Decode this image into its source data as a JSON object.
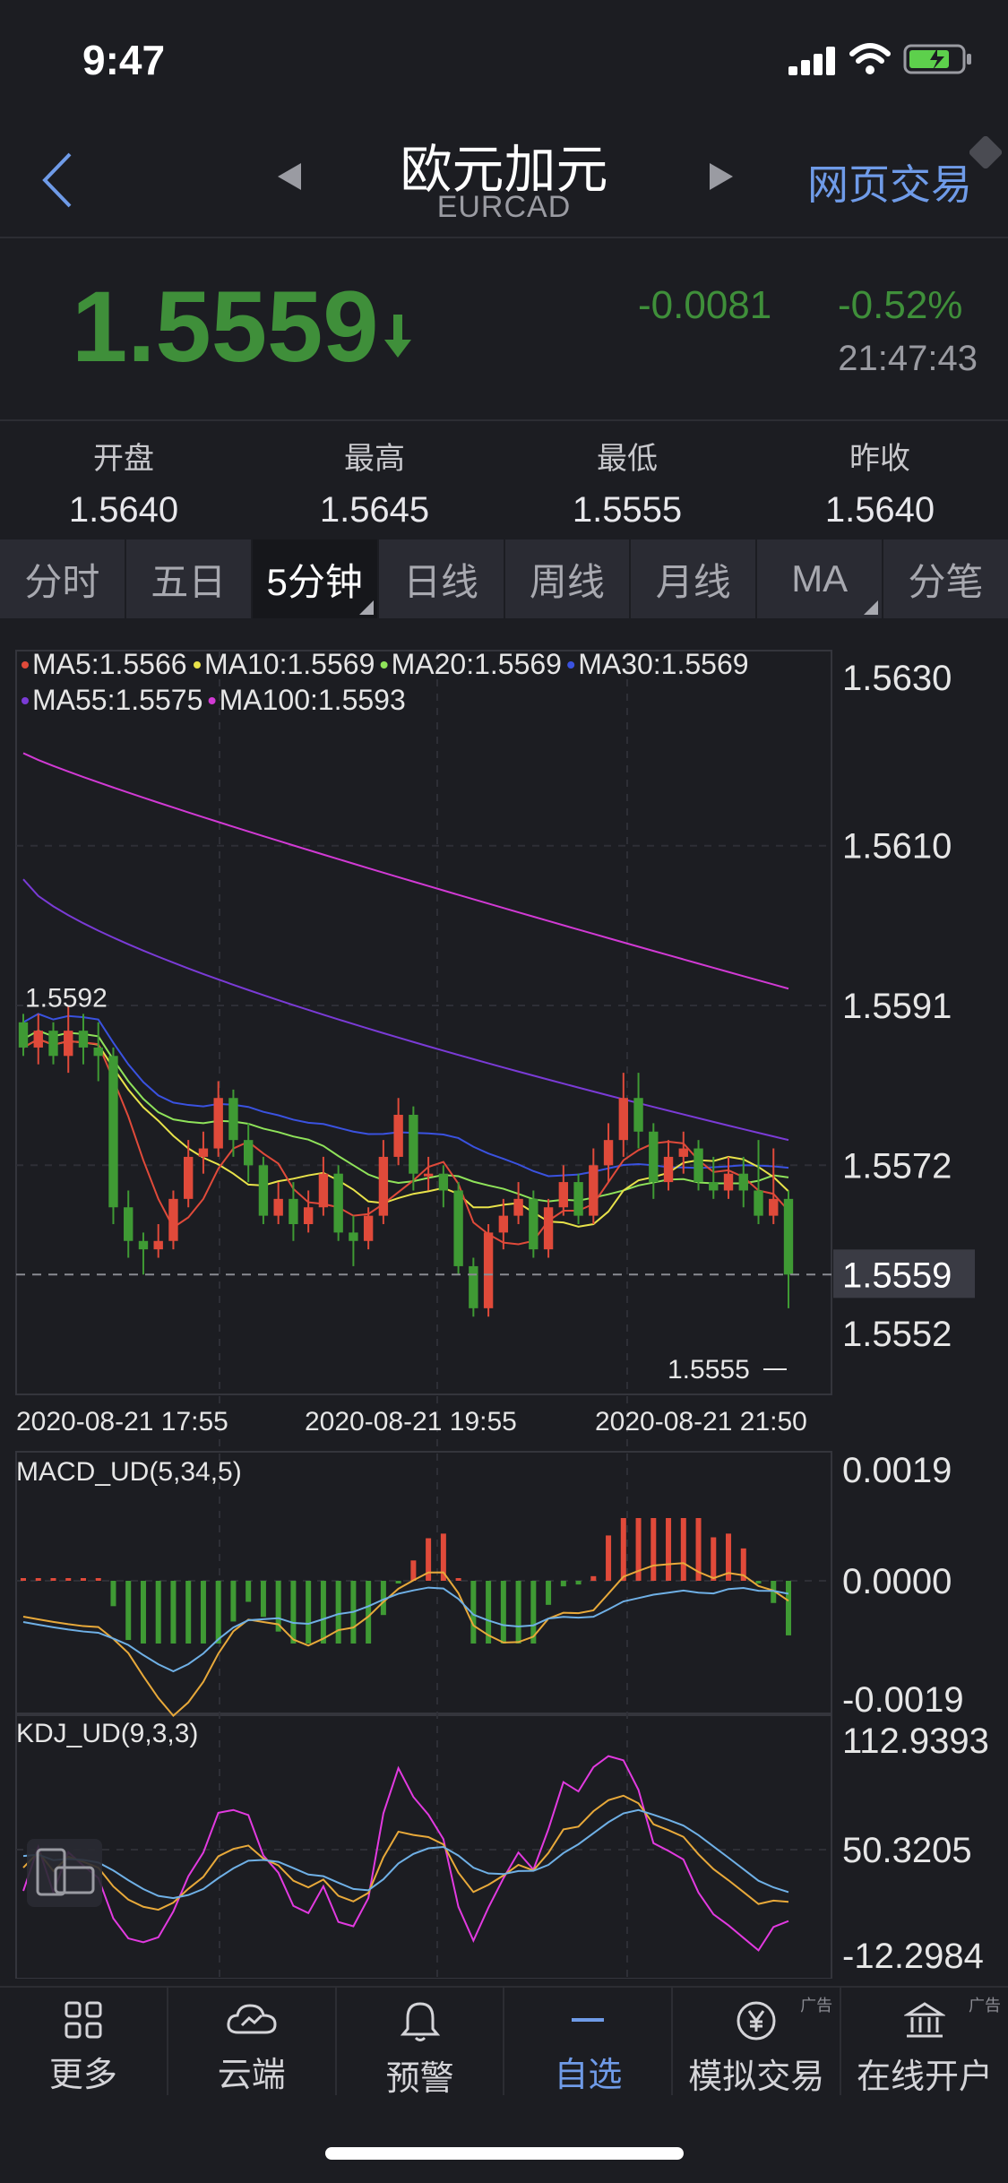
{
  "status_bar": {
    "time": "9:47"
  },
  "header": {
    "title": "欧元加元",
    "subtitle": "EURCAD",
    "web_trade": "网页交易"
  },
  "quote": {
    "price": "1.5559",
    "direction_icon": "down-arrow-icon",
    "change": "-0.0081",
    "change_pct": "-0.52%",
    "time": "21:47:43",
    "stats": [
      {
        "label": "开盘",
        "value": "1.5640"
      },
      {
        "label": "最高",
        "value": "1.5645"
      },
      {
        "label": "最低",
        "value": "1.5555"
      },
      {
        "label": "昨收",
        "value": "1.5640"
      }
    ]
  },
  "tabs": [
    "分时",
    "五日",
    "5分钟",
    "日线",
    "周线",
    "月线",
    "MA",
    "分笔"
  ],
  "active_tab": "5分钟",
  "colors": {
    "up": "#e04a3a",
    "down": "#3f9a34",
    "accent": "#6f9be8"
  },
  "chart_data": [
    {
      "type": "candlestick",
      "legend": [
        {
          "text": "MA5:1.5566",
          "color": "#e04a3a"
        },
        {
          "text": "MA10:1.5569",
          "color": "#e8e24a"
        },
        {
          "text": "MA20:1.5569",
          "color": "#8fe35a"
        },
        {
          "text": "MA30:1.5569",
          "color": "#3a52e0"
        },
        {
          "text": "MA55:1.5575",
          "color": "#7a3bd6"
        },
        {
          "text": "MA100:1.5593",
          "color": "#d13ad4"
        }
      ],
      "y_ticks": [
        "1.5630",
        "1.5610",
        "1.5591",
        "1.5572",
        "1.5552"
      ],
      "ylim": [
        1.5552,
        1.563
      ],
      "x_ticks": [
        "2020-08-21 17:55",
        "2020-08-21 19:55",
        "2020-08-21 21:50"
      ],
      "current_price": "1.5559",
      "high_marker": "1.5592",
      "low_marker": "1.5555",
      "candles": [
        [
          1.5589,
          1.5586,
          1.559,
          1.5585
        ],
        [
          1.5586,
          1.5588,
          1.559,
          1.5584
        ],
        [
          1.5588,
          1.5585,
          1.5589,
          1.5584
        ],
        [
          1.5585,
          1.5588,
          1.5591,
          1.5583
        ],
        [
          1.5588,
          1.5586,
          1.559,
          1.5584
        ],
        [
          1.5586,
          1.5585,
          1.5589,
          1.5582
        ],
        [
          1.5585,
          1.5567,
          1.5586,
          1.5565
        ],
        [
          1.5567,
          1.5563,
          1.5569,
          1.5561
        ],
        [
          1.5563,
          1.5562,
          1.5564,
          1.5559
        ],
        [
          1.5562,
          1.5563,
          1.5565,
          1.5561
        ],
        [
          1.5563,
          1.5568,
          1.5569,
          1.5562
        ],
        [
          1.5568,
          1.5573,
          1.5575,
          1.5567
        ],
        [
          1.5573,
          1.5574,
          1.5576,
          1.5571
        ],
        [
          1.5574,
          1.558,
          1.5582,
          1.5573
        ],
        [
          1.558,
          1.5575,
          1.5581,
          1.5573
        ],
        [
          1.5575,
          1.5572,
          1.5577,
          1.557
        ],
        [
          1.5572,
          1.5566,
          1.5573,
          1.5565
        ],
        [
          1.5566,
          1.5568,
          1.557,
          1.5565
        ],
        [
          1.5568,
          1.5565,
          1.557,
          1.5563
        ],
        [
          1.5565,
          1.5567,
          1.5569,
          1.5564
        ],
        [
          1.5567,
          1.5571,
          1.5573,
          1.5566
        ],
        [
          1.5571,
          1.5564,
          1.5572,
          1.5563
        ],
        [
          1.5564,
          1.5563,
          1.5566,
          1.556
        ],
        [
          1.5563,
          1.5566,
          1.5567,
          1.5562
        ],
        [
          1.5566,
          1.5573,
          1.5575,
          1.5565
        ],
        [
          1.5573,
          1.5578,
          1.558,
          1.5572
        ],
        [
          1.5578,
          1.5571,
          1.5579,
          1.5569
        ],
        [
          1.5571,
          1.5571,
          1.5573,
          1.5569
        ],
        [
          1.5571,
          1.5569,
          1.5572,
          1.5567
        ],
        [
          1.5569,
          1.556,
          1.557,
          1.5559
        ],
        [
          1.556,
          1.5555,
          1.5561,
          1.5554
        ],
        [
          1.5555,
          1.5564,
          1.5565,
          1.5554
        ],
        [
          1.5564,
          1.5566,
          1.5568,
          1.5562
        ],
        [
          1.5566,
          1.5568,
          1.557,
          1.5565
        ],
        [
          1.5568,
          1.5562,
          1.5569,
          1.5561
        ],
        [
          1.5562,
          1.5567,
          1.5568,
          1.5561
        ],
        [
          1.5567,
          1.557,
          1.5572,
          1.5566
        ],
        [
          1.557,
          1.5566,
          1.5571,
          1.5565
        ],
        [
          1.5566,
          1.5572,
          1.5574,
          1.5565
        ],
        [
          1.5572,
          1.5575,
          1.5577,
          1.557
        ],
        [
          1.5575,
          1.558,
          1.5583,
          1.5573
        ],
        [
          1.558,
          1.5576,
          1.5583,
          1.5574
        ],
        [
          1.5576,
          1.557,
          1.5577,
          1.5568
        ],
        [
          1.557,
          1.5573,
          1.5575,
          1.5569
        ],
        [
          1.5573,
          1.5574,
          1.5576,
          1.5571
        ],
        [
          1.5574,
          1.557,
          1.5575,
          1.5569
        ],
        [
          1.557,
          1.5569,
          1.5573,
          1.5568
        ],
        [
          1.5569,
          1.5571,
          1.5573,
          1.5568
        ],
        [
          1.5571,
          1.5569,
          1.5573,
          1.5567
        ],
        [
          1.5569,
          1.5566,
          1.5575,
          1.5565
        ],
        [
          1.5566,
          1.5568,
          1.5574,
          1.5565
        ],
        [
          1.5568,
          1.5559,
          1.5569,
          1.5555
        ]
      ]
    },
    {
      "type": "line",
      "title": "MACD_UD(5,34,5)",
      "y_ticks": [
        "0.0019",
        "0.0000",
        "-0.0019"
      ]
    },
    {
      "type": "line",
      "title": "KDJ_UD(9,3,3)",
      "y_ticks": [
        "112.9393",
        "50.3205",
        "-12.2984"
      ]
    }
  ],
  "nav": [
    {
      "label": "更多",
      "icon": "grid-icon"
    },
    {
      "label": "云端",
      "icon": "cloud-icon"
    },
    {
      "label": "预警",
      "icon": "bell-icon"
    },
    {
      "label": "自选",
      "icon": "minus-icon",
      "active": true
    },
    {
      "label": "模拟交易",
      "icon": "yen-icon",
      "ad": "广告"
    },
    {
      "label": "在线开户",
      "icon": "bank-icon",
      "ad": "广告"
    }
  ]
}
